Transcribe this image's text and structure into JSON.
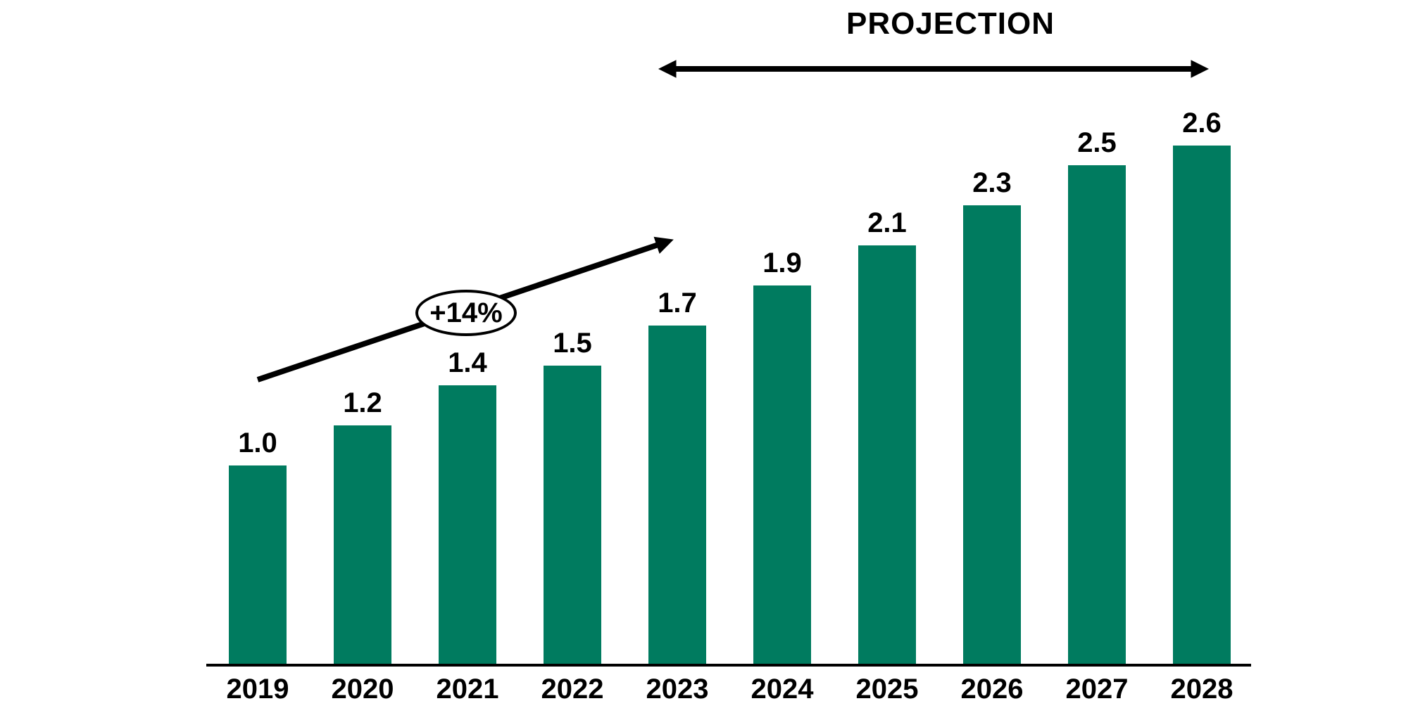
{
  "page": {
    "background_color": "#FFFFFF"
  },
  "chart_data": {
    "type": "bar",
    "title": "",
    "xlabel": "",
    "ylabel": "",
    "categories": [
      "2019",
      "2020",
      "2021",
      "2022",
      "2023",
      "2024",
      "2025",
      "2026",
      "2027",
      "2028"
    ],
    "values": [
      1.0,
      1.2,
      1.4,
      1.5,
      1.7,
      1.9,
      2.1,
      2.3,
      2.5,
      2.6
    ],
    "value_labels": [
      "1.0",
      "1.2",
      "1.4",
      "1.5",
      "1.7",
      "1.9",
      "2.1",
      "2.3",
      "2.5",
      "2.6"
    ],
    "ylim": [
      0,
      2.8
    ],
    "grid": false,
    "legend": "none",
    "y_axis_visible": false,
    "bar_color": "#007B5F",
    "axis_color": "#000000",
    "label_color": "#000000",
    "annotations": [
      {
        "type": "span-double-arrow",
        "label": "PROJECTION",
        "from_category": "2023",
        "to_category": "2028",
        "color": "#000000"
      },
      {
        "type": "trend-arrow",
        "label": "+14%",
        "from_category": "2019",
        "to_category": "2023",
        "color": "#000000",
        "badge_fill": "#FFFFFF",
        "badge_border": "#000000"
      }
    ]
  }
}
